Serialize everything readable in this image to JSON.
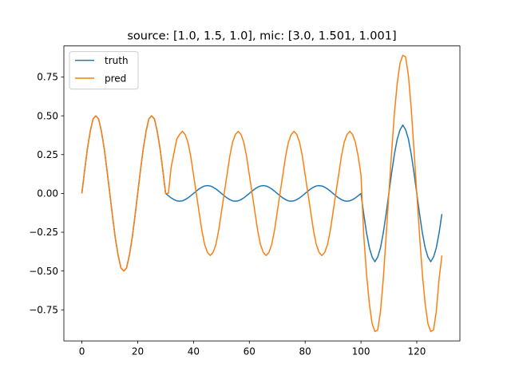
{
  "chart_data": {
    "type": "line",
    "title": "source: [1.0, 1.5, 1.0], mic: [3.0, 1.501, 1.001]",
    "xlabel": "",
    "ylabel": "",
    "xlim": [
      -6.45,
      135.45
    ],
    "ylim": [
      -0.95,
      0.95
    ],
    "xticks": [
      0,
      20,
      40,
      60,
      80,
      100,
      120
    ],
    "xtick_labels": [
      "0",
      "20",
      "40",
      "60",
      "80",
      "100",
      "120"
    ],
    "yticks": [
      -0.75,
      -0.5,
      -0.25,
      0.0,
      0.25,
      0.5,
      0.75
    ],
    "ytick_labels": [
      "−0.75",
      "−0.50",
      "−0.25",
      "0.00",
      "0.25",
      "0.50",
      "0.75"
    ],
    "grid": false,
    "legend_position": "top-left",
    "series": [
      {
        "name": "truth",
        "color": "#1f77b4",
        "x": [
          0,
          1,
          2,
          3,
          4,
          5,
          6,
          7,
          8,
          9,
          10,
          11,
          12,
          13,
          14,
          15,
          16,
          17,
          18,
          19,
          20,
          21,
          22,
          23,
          24,
          25,
          26,
          27,
          28,
          29,
          30,
          31,
          32,
          33,
          34,
          35,
          36,
          37,
          38,
          39,
          40,
          41,
          42,
          43,
          44,
          45,
          46,
          47,
          48,
          49,
          50,
          51,
          52,
          53,
          54,
          55,
          56,
          57,
          58,
          59,
          60,
          61,
          62,
          63,
          64,
          65,
          66,
          67,
          68,
          69,
          70,
          71,
          72,
          73,
          74,
          75,
          76,
          77,
          78,
          79,
          80,
          81,
          82,
          83,
          84,
          85,
          86,
          87,
          88,
          89,
          90,
          91,
          92,
          93,
          94,
          95,
          96,
          97,
          98,
          99,
          100,
          101,
          102,
          103,
          104,
          105,
          106,
          107,
          108,
          109,
          110,
          111,
          112,
          113,
          114,
          115,
          116,
          117,
          118,
          119,
          120,
          121,
          122,
          123,
          124,
          125,
          126,
          127,
          128,
          129
        ],
        "y": [
          0.0,
          0.15,
          0.29,
          0.4,
          0.48,
          0.5,
          0.48,
          0.4,
          0.29,
          0.15,
          0.0,
          -0.15,
          -0.29,
          -0.4,
          -0.48,
          -0.5,
          -0.48,
          -0.4,
          -0.29,
          -0.15,
          0.0,
          0.15,
          0.29,
          0.4,
          0.48,
          0.5,
          0.48,
          0.4,
          0.29,
          0.15,
          0.0,
          -0.015,
          -0.029,
          -0.04,
          -0.048,
          -0.05,
          -0.048,
          -0.04,
          -0.029,
          -0.015,
          0.0,
          0.015,
          0.029,
          0.04,
          0.048,
          0.05,
          0.048,
          0.04,
          0.029,
          0.015,
          0.0,
          -0.015,
          -0.029,
          -0.04,
          -0.048,
          -0.05,
          -0.048,
          -0.04,
          -0.029,
          -0.015,
          0.0,
          0.015,
          0.029,
          0.04,
          0.048,
          0.05,
          0.048,
          0.04,
          0.029,
          0.015,
          0.0,
          -0.015,
          -0.029,
          -0.04,
          -0.048,
          -0.05,
          -0.048,
          -0.04,
          -0.029,
          -0.015,
          0.0,
          0.015,
          0.029,
          0.04,
          0.048,
          0.05,
          0.048,
          0.04,
          0.029,
          0.015,
          0.0,
          -0.015,
          -0.029,
          -0.04,
          -0.048,
          -0.05,
          -0.048,
          -0.04,
          -0.029,
          -0.015,
          0.0,
          -0.133,
          -0.254,
          -0.35,
          -0.41,
          -0.44,
          -0.41,
          -0.35,
          -0.254,
          -0.133,
          0.0,
          0.133,
          0.254,
          0.35,
          0.41,
          0.44,
          0.41,
          0.35,
          0.254,
          0.133,
          0.0,
          -0.133,
          -0.254,
          -0.35,
          -0.41,
          -0.44,
          -0.41,
          -0.35,
          -0.254,
          -0.133
        ]
      },
      {
        "name": "pred",
        "color": "#ff7f0e",
        "x": [
          0,
          1,
          2,
          3,
          4,
          5,
          6,
          7,
          8,
          9,
          10,
          11,
          12,
          13,
          14,
          15,
          16,
          17,
          18,
          19,
          20,
          21,
          22,
          23,
          24,
          25,
          26,
          27,
          28,
          29,
          30,
          31,
          32,
          33,
          34,
          35,
          36,
          37,
          38,
          39,
          40,
          41,
          42,
          43,
          44,
          45,
          46,
          47,
          48,
          49,
          50,
          51,
          52,
          53,
          54,
          55,
          56,
          57,
          58,
          59,
          60,
          61,
          62,
          63,
          64,
          65,
          66,
          67,
          68,
          69,
          70,
          71,
          72,
          73,
          74,
          75,
          76,
          77,
          78,
          79,
          80,
          81,
          82,
          83,
          84,
          85,
          86,
          87,
          88,
          89,
          90,
          91,
          92,
          93,
          94,
          95,
          96,
          97,
          98,
          99,
          100,
          101,
          102,
          103,
          104,
          105,
          106,
          107,
          108,
          109,
          110,
          111,
          112,
          113,
          114,
          115,
          116,
          117,
          118,
          119,
          120,
          121,
          122,
          123,
          124,
          125,
          126,
          127,
          128,
          129
        ],
        "y": [
          0.0,
          0.15,
          0.29,
          0.4,
          0.48,
          0.5,
          0.48,
          0.4,
          0.29,
          0.15,
          0.0,
          -0.15,
          -0.29,
          -0.4,
          -0.48,
          -0.5,
          -0.48,
          -0.4,
          -0.29,
          -0.15,
          0.0,
          0.15,
          0.29,
          0.4,
          0.48,
          0.5,
          0.48,
          0.4,
          0.29,
          0.15,
          0.0,
          0.0,
          0.17,
          0.26,
          0.35,
          0.38,
          0.4,
          0.38,
          0.33,
          0.24,
          0.12,
          0.0,
          -0.12,
          -0.24,
          -0.33,
          -0.38,
          -0.4,
          -0.38,
          -0.33,
          -0.24,
          -0.12,
          0.0,
          0.12,
          0.24,
          0.33,
          0.38,
          0.4,
          0.38,
          0.33,
          0.24,
          0.12,
          0.0,
          -0.12,
          -0.24,
          -0.33,
          -0.38,
          -0.4,
          -0.38,
          -0.33,
          -0.24,
          -0.12,
          0.0,
          0.12,
          0.24,
          0.33,
          0.38,
          0.4,
          0.38,
          0.33,
          0.24,
          0.12,
          0.0,
          -0.12,
          -0.24,
          -0.33,
          -0.38,
          -0.4,
          -0.38,
          -0.33,
          -0.24,
          -0.12,
          0.0,
          0.12,
          0.24,
          0.33,
          0.38,
          0.4,
          0.38,
          0.33,
          0.24,
          0.12,
          -0.27,
          -0.52,
          -0.71,
          -0.84,
          -0.89,
          -0.88,
          -0.76,
          -0.55,
          -0.28,
          0.0,
          0.27,
          0.52,
          0.71,
          0.84,
          0.89,
          0.88,
          0.76,
          0.55,
          0.28,
          0.0,
          -0.27,
          -0.52,
          -0.71,
          -0.84,
          -0.89,
          -0.88,
          -0.76,
          -0.55,
          -0.4
        ]
      }
    ]
  }
}
